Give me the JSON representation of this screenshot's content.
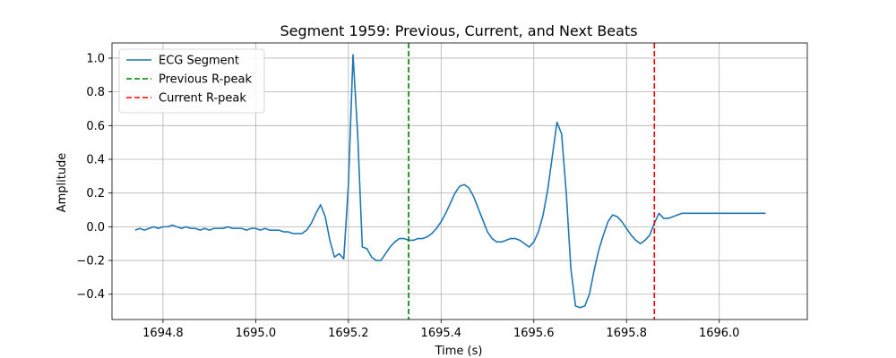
{
  "chart_data": {
    "type": "line",
    "title": "Segment 1959: Previous, Current, and Next Beats",
    "xlabel": "Time (s)",
    "ylabel": "Amplitude",
    "xlim": [
      1694.69,
      1696.19
    ],
    "ylim": [
      -0.55,
      1.09
    ],
    "xticks": [
      1694.8,
      1695.0,
      1695.2,
      1695.4,
      1695.6,
      1695.8,
      1696.0
    ],
    "xtick_labels": [
      "1694.8",
      "1695.0",
      "1695.2",
      "1695.4",
      "1695.6",
      "1695.8",
      "1696.0"
    ],
    "yticks": [
      -0.4,
      -0.2,
      0.0,
      0.2,
      0.4,
      0.6,
      0.8,
      1.0
    ],
    "ytick_labels": [
      "−0.4",
      "−0.2",
      "0.0",
      "0.2",
      "0.4",
      "0.6",
      "0.8",
      "1.0"
    ],
    "grid": true,
    "legend_position": "top-left",
    "series": [
      {
        "name": "ECG Segment",
        "color": "#1f77b4",
        "style": "solid",
        "x": [
          1694.74,
          1694.75,
          1694.76,
          1694.77,
          1694.78,
          1694.79,
          1694.8,
          1694.81,
          1694.82,
          1694.83,
          1694.84,
          1694.85,
          1694.86,
          1694.87,
          1694.88,
          1694.89,
          1694.9,
          1694.91,
          1694.92,
          1694.93,
          1694.94,
          1694.95,
          1694.96,
          1694.97,
          1694.98,
          1694.99,
          1695.0,
          1695.01,
          1695.02,
          1695.03,
          1695.04,
          1695.05,
          1695.06,
          1695.07,
          1695.08,
          1695.09,
          1695.1,
          1695.11,
          1695.12,
          1695.13,
          1695.14,
          1695.15,
          1695.16,
          1695.17,
          1695.18,
          1695.19,
          1695.2,
          1695.21,
          1695.22,
          1695.23,
          1695.24,
          1695.25,
          1695.26,
          1695.27,
          1695.28,
          1695.29,
          1695.3,
          1695.31,
          1695.32,
          1695.33,
          1695.34,
          1695.35,
          1695.36,
          1695.37,
          1695.38,
          1695.39,
          1695.4,
          1695.41,
          1695.42,
          1695.43,
          1695.44,
          1695.45,
          1695.46,
          1695.47,
          1695.48,
          1695.49,
          1695.5,
          1695.51,
          1695.52,
          1695.53,
          1695.54,
          1695.55,
          1695.56,
          1695.57,
          1695.58,
          1695.59,
          1695.6,
          1695.61,
          1695.62,
          1695.63,
          1695.64,
          1695.65,
          1695.66,
          1695.67,
          1695.68,
          1695.69,
          1695.7,
          1695.71,
          1695.72,
          1695.73,
          1695.74,
          1695.75,
          1695.76,
          1695.77,
          1695.78,
          1695.79,
          1695.8,
          1695.81,
          1695.82,
          1695.83,
          1695.84,
          1695.85,
          1695.86,
          1695.87,
          1695.88,
          1695.89,
          1695.9,
          1695.91,
          1695.92,
          1695.93,
          1695.94,
          1695.95,
          1695.96,
          1695.97,
          1695.98,
          1695.99,
          1696.0,
          1696.01,
          1696.02,
          1696.03,
          1696.04,
          1696.05,
          1696.06,
          1696.07,
          1696.08,
          1696.09,
          1696.1
        ],
        "y": [
          -0.02,
          -0.01,
          -0.02,
          -0.01,
          0.0,
          -0.01,
          0.0,
          0.0,
          0.01,
          0.0,
          -0.01,
          0.0,
          -0.01,
          -0.01,
          -0.02,
          -0.01,
          -0.02,
          -0.01,
          -0.01,
          -0.01,
          0.0,
          -0.01,
          -0.01,
          -0.01,
          -0.02,
          -0.01,
          -0.01,
          -0.02,
          -0.01,
          -0.02,
          -0.02,
          -0.02,
          -0.03,
          -0.03,
          -0.04,
          -0.04,
          -0.04,
          -0.02,
          0.02,
          0.08,
          0.13,
          0.06,
          -0.08,
          -0.18,
          -0.16,
          -0.19,
          0.25,
          1.02,
          0.55,
          -0.12,
          -0.13,
          -0.18,
          -0.2,
          -0.2,
          -0.16,
          -0.12,
          -0.09,
          -0.07,
          -0.07,
          -0.08,
          -0.08,
          -0.07,
          -0.07,
          -0.06,
          -0.04,
          -0.01,
          0.03,
          0.08,
          0.14,
          0.2,
          0.24,
          0.25,
          0.23,
          0.18,
          0.11,
          0.04,
          -0.03,
          -0.07,
          -0.09,
          -0.09,
          -0.08,
          -0.07,
          -0.07,
          -0.08,
          -0.1,
          -0.12,
          -0.09,
          -0.03,
          0.07,
          0.22,
          0.42,
          0.62,
          0.55,
          0.2,
          -0.25,
          -0.47,
          -0.48,
          -0.47,
          -0.4,
          -0.26,
          -0.14,
          -0.05,
          0.03,
          0.07,
          0.06,
          0.03,
          -0.01,
          -0.05,
          -0.08,
          -0.1,
          -0.08,
          -0.05,
          0.02,
          0.08,
          0.05,
          0.05,
          0.06,
          0.07,
          0.08,
          0.08,
          0.08,
          0.08,
          0.08,
          0.08,
          0.08,
          0.08,
          0.08,
          0.08,
          0.08,
          0.08,
          0.08,
          0.08,
          0.08,
          0.08,
          0.08,
          0.08,
          0.08
        ]
      },
      {
        "name": "Previous R-peak",
        "color": "#008000",
        "style": "dashed",
        "vline_x": 1695.33
      },
      {
        "name": "Current R-peak",
        "color": "#ff0000",
        "style": "dashed",
        "vline_x": 1695.86
      }
    ]
  }
}
